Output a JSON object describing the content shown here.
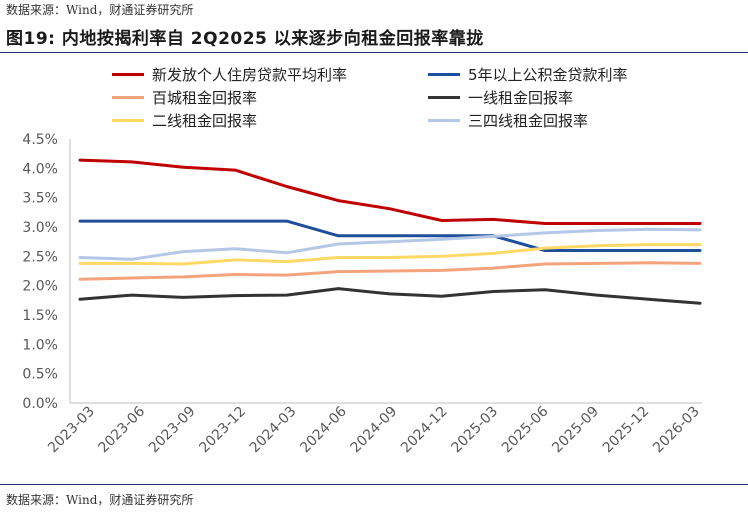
{
  "source_top": "数据来源：Wind，财通证券研究所",
  "title": "图19: 内地按揭利率自 2Q2025 以来逐步向租金回报率靠拢",
  "source_bottom": "数据来源：Wind，财通证券研究所",
  "chart_data": {
    "type": "line",
    "title": "图19: 内地按揭利率自 2Q2025 以来逐步向租金回报率靠拢",
    "xlabel": "",
    "ylabel": "",
    "ylim": [
      0,
      4.5
    ],
    "yticks": [
      "0.0%",
      "0.5%",
      "1.0%",
      "1.5%",
      "2.0%",
      "2.5%",
      "3.0%",
      "3.5%",
      "4.0%",
      "4.5%"
    ],
    "grid": false,
    "legend_position": "top",
    "categories": [
      "2023-03",
      "2023-06",
      "2023-09",
      "2023-12",
      "2024-03",
      "2024-06",
      "2024-09",
      "2024-12",
      "2025-03",
      "2025-06",
      "2025-09",
      "2025-12",
      "2026-03"
    ],
    "series": [
      {
        "name": "新发放个人住房贷款平均利率",
        "color": "#c00000",
        "values": [
          4.14,
          4.11,
          4.02,
          3.97,
          3.69,
          3.45,
          3.31,
          3.11,
          3.13,
          3.06,
          3.06,
          3.06,
          3.06
        ]
      },
      {
        "name": "5年以上公积金贷款利率",
        "color": "#1f4e9a",
        "values": [
          3.1,
          3.1,
          3.1,
          3.1,
          3.1,
          2.85,
          2.85,
          2.85,
          2.85,
          2.6,
          2.6,
          2.6,
          2.6
        ]
      },
      {
        "name": "百城租金回报率",
        "color": "#f4a47c",
        "values": [
          2.11,
          2.13,
          2.15,
          2.19,
          2.18,
          2.24,
          2.25,
          2.26,
          2.3,
          2.37,
          2.38,
          2.39,
          2.38
        ]
      },
      {
        "name": "一线租金回报率",
        "color": "#333333",
        "values": [
          1.77,
          1.84,
          1.8,
          1.83,
          1.84,
          1.95,
          1.86,
          1.82,
          1.9,
          1.93,
          1.84,
          1.77,
          1.7
        ]
      },
      {
        "name": "二线租金回报率",
        "color": "#ffd966",
        "values": [
          2.38,
          2.38,
          2.37,
          2.44,
          2.41,
          2.48,
          2.48,
          2.5,
          2.55,
          2.64,
          2.68,
          2.7,
          2.7
        ]
      },
      {
        "name": "三四线租金回报率",
        "color": "#b4c7e7",
        "values": [
          2.48,
          2.45,
          2.58,
          2.63,
          2.56,
          2.71,
          2.75,
          2.79,
          2.84,
          2.9,
          2.94,
          2.96,
          2.95
        ]
      }
    ]
  }
}
